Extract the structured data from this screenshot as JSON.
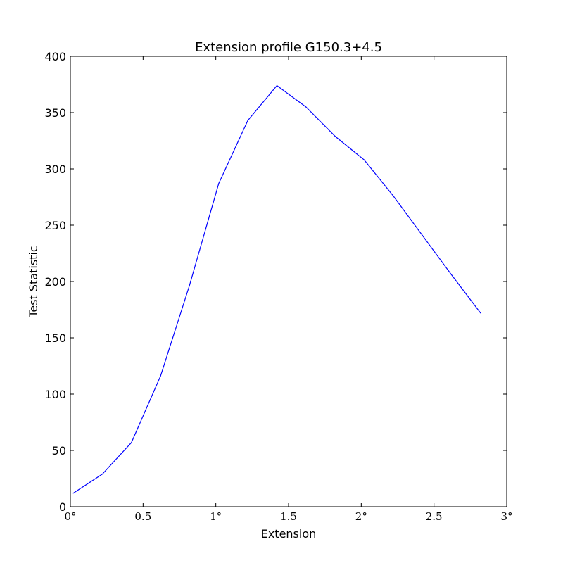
{
  "chart_data": {
    "type": "line",
    "title": "Extension profile G150.3+4.5",
    "xlabel": "Extension",
    "ylabel": "Test Statistic",
    "xlim": [
      0,
      3
    ],
    "ylim": [
      0,
      400
    ],
    "grid": false,
    "x_ticks": [
      0,
      0.5,
      1,
      1.5,
      2,
      2.5,
      3
    ],
    "x_tick_labels": [
      "0°",
      "0.5",
      "1°",
      "1.5",
      "2°",
      "2.5",
      "3°"
    ],
    "y_ticks": [
      0,
      50,
      100,
      150,
      200,
      250,
      300,
      350,
      400
    ],
    "y_tick_labels": [
      "0",
      "50",
      "100",
      "150",
      "200",
      "250",
      "300",
      "350",
      "400"
    ],
    "series": [
      {
        "color": "#0000ff",
        "x": [
          0.02,
          0.22,
          0.42,
          0.62,
          0.82,
          1.02,
          1.22,
          1.42,
          1.62,
          1.82,
          2.02,
          2.22,
          2.42,
          2.62,
          2.82
        ],
        "y": [
          12,
          29,
          57,
          116,
          197,
          287,
          343,
          374,
          355,
          329,
          308,
          276,
          241,
          206,
          172
        ]
      }
    ]
  }
}
